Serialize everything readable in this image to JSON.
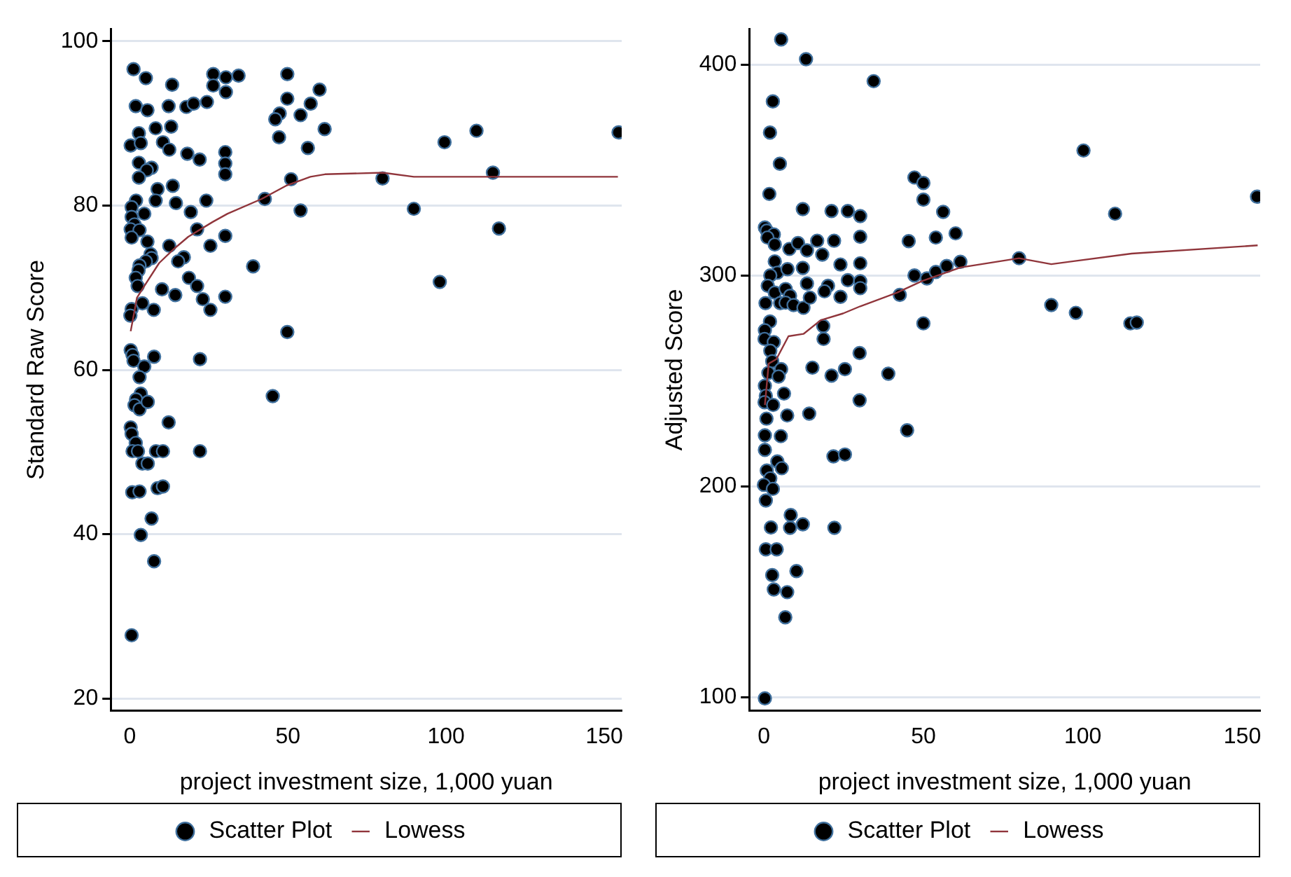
{
  "chart_data": [
    {
      "type": "scatter",
      "xlabel": "project investment size, 1,000 yuan",
      "ylabel": "Standard Raw Score",
      "xlim": [
        -6,
        155.5
      ],
      "ylim": [
        18.5,
        101.5
      ],
      "xticks": [
        0,
        50,
        100,
        150
      ],
      "yticks": [
        20,
        40,
        60,
        80,
        100
      ],
      "grid": "y",
      "legend": "bottom",
      "series": [
        {
          "name": "Scatter Plot",
          "marker": "circle",
          "color": "#000000",
          "x": [
            1.2,
            5.1,
            13.4,
            26.4,
            30.4,
            34.4,
            26.4,
            30.4,
            49.8,
            49.8,
            60,
            57.2,
            54,
            47.4,
            46,
            61.6,
            47.2,
            56.3,
            1.9,
            5.6,
            12.3,
            17.9,
            20.2,
            24.4,
            2.9,
            8.2,
            13.1,
            0.3,
            3.5,
            10.5,
            12.5,
            18.2,
            22.1,
            30.2,
            30.2,
            30.2,
            2.9,
            6.9,
            5.4,
            2.9,
            51,
            8.8,
            13.6,
            2,
            8.2,
            14.6,
            24.2,
            42.7,
            54,
            0.6,
            4.6,
            19.3,
            0.6,
            1.5,
            0.3,
            3.1,
            0.6,
            5.6,
            21.3,
            30.2,
            25.5,
            12.5,
            6.6,
            6.9,
            5.1,
            17.1,
            15.3,
            3.1,
            2.8,
            1.9,
            2.5,
            39,
            18.7,
            21.3,
            10.2,
            14.4,
            23.1,
            30.2,
            25.5,
            4,
            7.6,
            0.6,
            0.2,
            49.8,
            0.3,
            0.9,
            1.2,
            7.7,
            22.2,
            4.6,
            3.1,
            3.5,
            2,
            1.5,
            3.1,
            5.7,
            45.2,
            12.3,
            0.3,
            0.6,
            1.9,
            0.9,
            2.6,
            8.3,
            10.5,
            22.2,
            4,
            5.7,
            0.8,
            3.1,
            8.8,
            10.5,
            6.9,
            3.5,
            7.7,
            0.6,
            79.9,
            89.8,
            99.5,
            98,
            109.6,
            114.8,
            116.7,
            154.5
          ],
          "values": [
            96.6,
            95.5,
            94.7,
            96,
            95.6,
            95.8,
            94.6,
            93.8,
            96,
            93,
            94.1,
            92.4,
            91,
            91.2,
            90.5,
            89.3,
            88.3,
            87,
            92.1,
            91.6,
            92.1,
            92,
            92.4,
            92.6,
            88.8,
            89.4,
            89.6,
            87.3,
            87.6,
            87.7,
            86.8,
            86.3,
            85.6,
            86.5,
            85.1,
            83.8,
            85.2,
            84.6,
            84.3,
            83.4,
            83.2,
            82,
            82.4,
            80.6,
            80.6,
            80.3,
            80.6,
            80.8,
            79.4,
            79.8,
            79,
            79.2,
            78.6,
            77.7,
            77.1,
            77,
            76.1,
            75.6,
            77.1,
            76.3,
            75.1,
            75.1,
            74.1,
            73.6,
            73.2,
            73.7,
            73.2,
            72.7,
            72.1,
            71.2,
            70.2,
            72.6,
            71.2,
            70.2,
            69.8,
            69.1,
            68.6,
            68.9,
            67.3,
            68.1,
            67.3,
            67.4,
            66.6,
            64.6,
            62.4,
            61.8,
            61.1,
            61.6,
            61.3,
            60.4,
            59.1,
            57.1,
            56.4,
            55.7,
            55.2,
            56.1,
            56.8,
            53.6,
            53,
            52.2,
            51.1,
            50.1,
            50.1,
            50.1,
            50.1,
            50.1,
            48.6,
            48.6,
            45.1,
            45.2,
            45.6,
            45.8,
            41.9,
            39.9,
            36.7,
            27.7,
            83.3,
            79.6,
            87.7,
            70.7,
            89.1,
            84,
            77.2,
            88.9
          ]
        },
        {
          "name": "Lowess",
          "type": "line",
          "marker": "none",
          "color": "#90353b",
          "x": [
            0.3,
            2.3,
            4.6,
            9.3,
            13.9,
            18.5,
            26.2,
            30.9,
            41.7,
            49.4,
            57.1,
            61.7,
            80,
            89.8,
            154.3
          ],
          "values": [
            64.7,
            68.8,
            70.2,
            73,
            74.7,
            76.2,
            78,
            79,
            80.8,
            82.4,
            83.5,
            83.8,
            84,
            83.5,
            83.5
          ]
        }
      ]
    },
    {
      "type": "scatter",
      "xlabel": "project investment size, 1,000 yuan",
      "ylabel": "Adjusted Score",
      "xlim": [
        -4.6,
        155.6
      ],
      "ylim": [
        93.5,
        417
      ],
      "xticks": [
        0,
        50,
        100,
        150
      ],
      "yticks": [
        100,
        200,
        300,
        400
      ],
      "grid": "y",
      "legend": "bottom",
      "series": [
        {
          "name": "Scatter Plot",
          "marker": "circle",
          "color": "#000000",
          "x": [
            5.4,
            13.2,
            34.4,
            2.8,
            1.9,
            5,
            1.7,
            47.2,
            50,
            50,
            56.2,
            12.2,
            21.2,
            26.3,
            30.2,
            30.2,
            0.3,
            0.9,
            3.1,
            1.1,
            3.4,
            8,
            10.7,
            13.5,
            16.7,
            22,
            18.3,
            45.4,
            53.9,
            60.1,
            3.4,
            4.2,
            2,
            7.4,
            12.2,
            24,
            30.2,
            47.2,
            51.1,
            53.9,
            57.3,
            61.6,
            1.2,
            3.4,
            6.8,
            8.2,
            13.5,
            20.1,
            26.3,
            30.2,
            30.2,
            0.5,
            5.1,
            6.8,
            9.3,
            12.4,
            14.4,
            19,
            24,
            42.6,
            50,
            1.9,
            0.3,
            0.2,
            3.1,
            18.6,
            18.7,
            2,
            2.6,
            5.4,
            1.4,
            4.6,
            30,
            15.2,
            21.2,
            25.4,
            39,
            0.3,
            0.6,
            0.2,
            2.9,
            6.3,
            7.3,
            14.2,
            30,
            0.8,
            0.3,
            5.3,
            44.9,
            0.3,
            4.2,
            5.6,
            0.9,
            21.8,
            25.4,
            2,
            0,
            2.8,
            0.6,
            8.4,
            12.2,
            2.2,
            8.2,
            22.1,
            0.6,
            4,
            10.2,
            2.6,
            3.1,
            7.3,
            6.7,
            0.3,
            80,
            90.1,
            97.8,
            100.2,
            110.1,
            114.9,
            116.9,
            154.6
          ],
          "values": [
            412,
            402.6,
            392.2,
            382.6,
            367.8,
            353,
            338.7,
            346.5,
            343.9,
            336,
            330.2,
            331.5,
            330.6,
            330.6,
            328.2,
            318.4,
            322.8,
            321.3,
            319.5,
            318,
            314.7,
            312.6,
            315.4,
            311.9,
            316.5,
            316.5,
            309.9,
            316.3,
            318,
            320,
            306.7,
            301.3,
            300,
            303,
            303.6,
            305.2,
            305.8,
            300,
            298.6,
            301.7,
            304.5,
            306.5,
            295.1,
            291.9,
            293.6,
            290.4,
            296.2,
            295.1,
            297.8,
            297.3,
            294,
            286.9,
            286.9,
            287.1,
            286,
            284.7,
            289.5,
            292.5,
            289.9,
            290.8,
            277.3,
            278.2,
            274,
            269.9,
            268.4,
            276,
            269.9,
            264.3,
            259.3,
            255.6,
            253.8,
            252.1,
            263.2,
            256.3,
            252.5,
            255.6,
            253.4,
            247.7,
            242.9,
            239.9,
            238.6,
            244,
            233.6,
            234.5,
            240.8,
            232.1,
            224.2,
            223.8,
            226.6,
            217.3,
            211.8,
            208.6,
            207.5,
            214.2,
            215.1,
            203.8,
            200.7,
            198.8,
            193.3,
            186.4,
            182,
            180.5,
            180.3,
            180.3,
            170.1,
            170.1,
            159.8,
            157.9,
            151.1,
            149.8,
            137.9,
            99.4,
            308.2,
            286,
            282.3,
            359.3,
            329.3,
            277.3,
            277.7,
            337.4
          ]
        },
        {
          "name": "Lowess",
          "type": "line",
          "marker": "none",
          "color": "#90353b",
          "x": [
            0.3,
            1.5,
            3.9,
            7.7,
            12.4,
            17.8,
            24.8,
            30.2,
            41.8,
            49.5,
            61.6,
            80,
            90.1,
            115.3,
            154.8
          ],
          "values": [
            238.6,
            258.2,
            260.3,
            271.2,
            272.3,
            278.8,
            282,
            285.4,
            291.9,
            297.3,
            303.8,
            308.2,
            305.4,
            310.4,
            314.3
          ]
        }
      ]
    }
  ]
}
